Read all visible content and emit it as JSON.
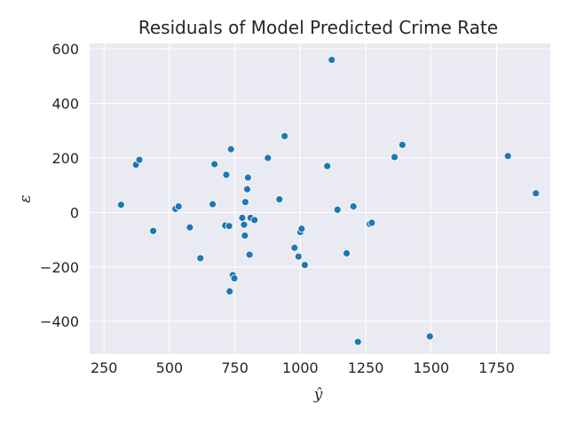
{
  "chart_data": {
    "type": "scatter",
    "title": "Residuals of Model Predicted Crime Rate",
    "xlabel": "ŷ",
    "ylabel": "ε",
    "xlim": [
      195,
      1955
    ],
    "ylim": [
      -520,
      620
    ],
    "xticks": [
      250,
      500,
      750,
      1000,
      1250,
      1500,
      1750
    ],
    "yticks": [
      -400,
      -200,
      0,
      200,
      400,
      600
    ],
    "xtick_labels": [
      "250",
      "500",
      "750",
      "1000",
      "1250",
      "1500",
      "1750"
    ],
    "ytick_labels": [
      "−400",
      "−200",
      "0",
      "200",
      "400",
      "600"
    ],
    "grid": true,
    "point_color": "#1f77b4",
    "background_color": "#eaeaf2",
    "points": [
      [
        315,
        28
      ],
      [
        372,
        175
      ],
      [
        385,
        193
      ],
      [
        438,
        -68
      ],
      [
        523,
        13
      ],
      [
        535,
        22
      ],
      [
        578,
        -55
      ],
      [
        618,
        -168
      ],
      [
        665,
        30
      ],
      [
        672,
        177
      ],
      [
        713,
        -48
      ],
      [
        717,
        138
      ],
      [
        728,
        -50
      ],
      [
        730,
        -290
      ],
      [
        735,
        232
      ],
      [
        742,
        -230
      ],
      [
        748,
        -242
      ],
      [
        778,
        -20
      ],
      [
        785,
        -45
      ],
      [
        788,
        -85
      ],
      [
        790,
        38
      ],
      [
        797,
        85
      ],
      [
        800,
        128
      ],
      [
        806,
        -155
      ],
      [
        810,
        -20
      ],
      [
        825,
        -28
      ],
      [
        876,
        200
      ],
      [
        920,
        48
      ],
      [
        940,
        280
      ],
      [
        978,
        -130
      ],
      [
        993,
        -162
      ],
      [
        1000,
        -72
      ],
      [
        1005,
        -60
      ],
      [
        1017,
        -193
      ],
      [
        1103,
        170
      ],
      [
        1120,
        560
      ],
      [
        1142,
        10
      ],
      [
        1177,
        -150
      ],
      [
        1203,
        22
      ],
      [
        1220,
        -475
      ],
      [
        1265,
        -42
      ],
      [
        1273,
        -38
      ],
      [
        1360,
        203
      ],
      [
        1390,
        248
      ],
      [
        1495,
        -455
      ],
      [
        1793,
        207
      ],
      [
        1900,
        70
      ]
    ]
  }
}
